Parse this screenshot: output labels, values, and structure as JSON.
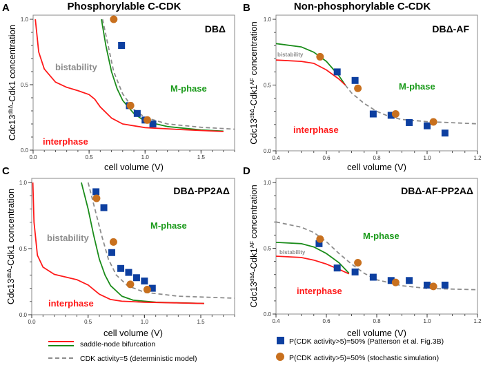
{
  "colors": {
    "saddle_red": "#ff1a1a",
    "saddle_green": "#1a8c1a",
    "deterministic": "#8c8c8c",
    "patterson": "#0d3fa0",
    "stochastic": "#c8701e",
    "region_gray": "#8c8c8c",
    "region_green": "#1a9a1a",
    "region_red": "#ff1a1a"
  },
  "legend": {
    "saddle_node": "saddle-node bifurcation",
    "deterministic": "CDK activity=5 (deterministic model)",
    "patterson": "P(CDK activity>5)=50% (Patterson et al. Fig.3B)",
    "stochastic": "P(CDK activity>5)=50% (stochastic simulation)"
  },
  "column_titles": {
    "left": "Phosphorylable C-CDK",
    "right": "Non-phosphorylable C-CDK"
  },
  "chart_data": [
    {
      "type": "line",
      "panel": "A",
      "mutant": "DBΔ",
      "xlabel": "cell volume (V)",
      "ylabel_main": "Cdc13",
      "ylabel_sup": "dbΔ",
      "ylabel_rest": "-Cdk1 concentration",
      "ylabel_sup2": "",
      "xlim": [
        0,
        1.8
      ],
      "ylim": [
        0,
        1.0
      ],
      "xticks": [
        "0.0",
        "0.5",
        "1.0",
        "1.5"
      ],
      "xtick_values": [
        0,
        0.5,
        1.0,
        1.5
      ],
      "yticks": [
        "0.0",
        "0.5",
        "1.0"
      ],
      "ytick_values": [
        0,
        0.5,
        1.0
      ],
      "regions": {
        "bistability": "bistability",
        "mphase": "M-phase",
        "interphase": "interphase"
      },
      "red": [
        [
          0.02,
          1.0
        ],
        [
          0.05,
          0.75
        ],
        [
          0.1,
          0.62
        ],
        [
          0.2,
          0.52
        ],
        [
          0.3,
          0.48
        ],
        [
          0.4,
          0.455
        ],
        [
          0.5,
          0.425
        ],
        [
          0.55,
          0.39
        ],
        [
          0.6,
          0.33
        ],
        [
          0.7,
          0.245
        ],
        [
          0.8,
          0.2
        ],
        [
          1.0,
          0.172
        ],
        [
          1.3,
          0.158
        ],
        [
          1.7,
          0.142
        ]
      ],
      "green": [
        [
          0.61,
          1.0
        ],
        [
          0.65,
          0.8
        ],
        [
          0.7,
          0.6
        ],
        [
          0.75,
          0.47
        ],
        [
          0.8,
          0.38
        ],
        [
          0.9,
          0.28
        ],
        [
          1.0,
          0.22
        ],
        [
          1.2,
          0.18
        ],
        [
          1.5,
          0.155
        ],
        [
          1.7,
          0.145
        ]
      ],
      "gray": [
        [
          0.62,
          1.0
        ],
        [
          0.67,
          0.8
        ],
        [
          0.72,
          0.6
        ],
        [
          0.8,
          0.43
        ],
        [
          0.9,
          0.31
        ],
        [
          1.0,
          0.25
        ],
        [
          1.2,
          0.2
        ],
        [
          1.5,
          0.175
        ],
        [
          1.8,
          0.16
        ]
      ],
      "squares": [
        [
          0.79,
          0.8
        ],
        [
          0.86,
          0.34
        ],
        [
          0.93,
          0.28
        ],
        [
          1.0,
          0.23
        ],
        [
          1.07,
          0.2
        ]
      ],
      "circles": [
        [
          0.72,
          1.0
        ],
        [
          0.87,
          0.34
        ],
        [
          1.02,
          0.23
        ]
      ]
    },
    {
      "type": "line",
      "panel": "B",
      "mutant": "DBΔ-AF",
      "xlabel": "cell volume (V)",
      "ylabel_main": "Cdc13",
      "ylabel_sup": "dbΔ",
      "ylabel_rest": "-Cdk1",
      "ylabel_sup2": "AF",
      "ylabel_end": " concentration",
      "xlim": [
        0.4,
        1.2
      ],
      "ylim": [
        0,
        1.0
      ],
      "xticks": [
        "0.4",
        "0.6",
        "0.8",
        "1.0",
        "1.2"
      ],
      "xtick_values": [
        0.4,
        0.6,
        0.8,
        1.0,
        1.2
      ],
      "yticks": [
        "0.0",
        "0.5",
        "1.0"
      ],
      "ytick_values": [
        0,
        0.5,
        1.0
      ],
      "regions": {
        "bistability": "bistability",
        "mphase": "M-phase",
        "interphase": "interphase"
      },
      "red": [
        [
          0.4,
          0.69
        ],
        [
          0.5,
          0.68
        ],
        [
          0.55,
          0.665
        ],
        [
          0.6,
          0.615
        ],
        [
          0.65,
          0.545
        ],
        [
          0.675,
          0.5
        ]
      ],
      "green": [
        [
          0.4,
          0.815
        ],
        [
          0.5,
          0.79
        ],
        [
          0.55,
          0.75
        ],
        [
          0.6,
          0.68
        ],
        [
          0.65,
          0.57
        ],
        [
          0.675,
          0.5
        ]
      ],
      "gray": [
        [
          0.675,
          0.5
        ],
        [
          0.7,
          0.44
        ],
        [
          0.75,
          0.36
        ],
        [
          0.8,
          0.3
        ],
        [
          0.85,
          0.26
        ],
        [
          0.9,
          0.238
        ],
        [
          1.0,
          0.222
        ],
        [
          1.2,
          0.205
        ]
      ],
      "squares": [
        [
          0.643,
          0.6
        ],
        [
          0.714,
          0.535
        ],
        [
          0.786,
          0.28
        ],
        [
          0.857,
          0.27
        ],
        [
          0.929,
          0.215
        ],
        [
          1.0,
          0.19
        ],
        [
          1.071,
          0.135
        ]
      ],
      "circles": [
        [
          0.575,
          0.715
        ],
        [
          0.725,
          0.475
        ],
        [
          0.875,
          0.28
        ],
        [
          1.025,
          0.22
        ]
      ]
    },
    {
      "type": "line",
      "panel": "C",
      "mutant": "DBΔ-PP2AΔ",
      "xlabel": "cell volume (V)",
      "ylabel_main": "Cdc13",
      "ylabel_sup": "dbΔ",
      "ylabel_rest": "-Cdk1 concentration",
      "ylabel_sup2": "",
      "xlim": [
        0,
        1.8
      ],
      "ylim": [
        0,
        1.0
      ],
      "xticks": [
        "0.0",
        "0.5",
        "1.0",
        "1.5"
      ],
      "xtick_values": [
        0,
        0.5,
        1.0,
        1.5
      ],
      "yticks": [
        "0.0",
        "0.5",
        "1.0"
      ],
      "ytick_values": [
        0,
        0.5,
        1.0
      ],
      "regions": {
        "bistability": "bistability",
        "mphase": "M-phase",
        "interphase": "interphase"
      },
      "red": [
        [
          0.01,
          1.0
        ],
        [
          0.02,
          0.7
        ],
        [
          0.05,
          0.45
        ],
        [
          0.1,
          0.36
        ],
        [
          0.2,
          0.305
        ],
        [
          0.3,
          0.285
        ],
        [
          0.4,
          0.265
        ],
        [
          0.5,
          0.225
        ],
        [
          0.6,
          0.155
        ],
        [
          0.7,
          0.115
        ],
        [
          0.8,
          0.102
        ],
        [
          1.0,
          0.095
        ],
        [
          1.53,
          0.085
        ]
      ],
      "green": [
        [
          0.44,
          1.0
        ],
        [
          0.5,
          0.8
        ],
        [
          0.55,
          0.6
        ],
        [
          0.6,
          0.42
        ],
        [
          0.65,
          0.3
        ],
        [
          0.7,
          0.22
        ],
        [
          0.8,
          0.14
        ],
        [
          0.9,
          0.11
        ],
        [
          1.1,
          0.095
        ],
        [
          1.53,
          0.085
        ]
      ],
      "gray": [
        [
          0.5,
          1.0
        ],
        [
          0.56,
          0.8
        ],
        [
          0.62,
          0.6
        ],
        [
          0.68,
          0.42
        ],
        [
          0.75,
          0.3
        ],
        [
          0.85,
          0.22
        ],
        [
          1.0,
          0.17
        ],
        [
          1.3,
          0.14
        ],
        [
          1.8,
          0.125
        ]
      ],
      "squares": [
        [
          0.57,
          0.93
        ],
        [
          0.64,
          0.81
        ],
        [
          0.71,
          0.47
        ],
        [
          0.79,
          0.35
        ],
        [
          0.86,
          0.32
        ],
        [
          0.93,
          0.28
        ],
        [
          1.0,
          0.255
        ],
        [
          1.07,
          0.2
        ]
      ],
      "circles": [
        [
          0.575,
          0.88
        ],
        [
          0.725,
          0.55
        ],
        [
          0.875,
          0.23
        ],
        [
          1.025,
          0.19
        ]
      ]
    },
    {
      "type": "line",
      "panel": "D",
      "mutant": "DBΔ-AF-PP2AΔ",
      "xlabel": "cell volume (V)",
      "ylabel_main": "Cdc13",
      "ylabel_sup": "dbΔ",
      "ylabel_rest": "-Cdk1",
      "ylabel_sup2": "AF",
      "ylabel_end": " concentration",
      "xlim": [
        0.4,
        1.2
      ],
      "ylim": [
        0,
        1.0
      ],
      "xticks": [
        "0.4",
        "0.6",
        "0.8",
        "1.0",
        "1.2"
      ],
      "xtick_values": [
        0.4,
        0.6,
        0.8,
        1.0,
        1.2
      ],
      "yticks": [
        "0.0",
        "0.5",
        "1.0"
      ],
      "ytick_values": [
        0,
        0.5,
        1.0
      ],
      "regions": {
        "bistability": "bistability",
        "mphase": "M-phase",
        "interphase": "interphase"
      },
      "red": [
        [
          0.4,
          0.44
        ],
        [
          0.5,
          0.43
        ],
        [
          0.55,
          0.41
        ],
        [
          0.6,
          0.38
        ],
        [
          0.65,
          0.34
        ],
        [
          0.69,
          0.305
        ]
      ],
      "green": [
        [
          0.4,
          0.545
        ],
        [
          0.5,
          0.535
        ],
        [
          0.55,
          0.51
        ],
        [
          0.6,
          0.46
        ],
        [
          0.65,
          0.39
        ],
        [
          0.69,
          0.31
        ]
      ],
      "gray": [
        [
          0.4,
          0.7
        ],
        [
          0.5,
          0.66
        ],
        [
          0.55,
          0.62
        ],
        [
          0.6,
          0.55
        ],
        [
          0.65,
          0.46
        ],
        [
          0.7,
          0.38
        ],
        [
          0.75,
          0.31
        ],
        [
          0.8,
          0.26
        ],
        [
          0.9,
          0.215
        ],
        [
          1.0,
          0.195
        ],
        [
          1.2,
          0.185
        ]
      ],
      "squares": [
        [
          0.571,
          0.535
        ],
        [
          0.643,
          0.35
        ],
        [
          0.714,
          0.32
        ],
        [
          0.786,
          0.28
        ],
        [
          0.857,
          0.255
        ],
        [
          0.929,
          0.255
        ],
        [
          1.0,
          0.22
        ],
        [
          1.071,
          0.22
        ]
      ],
      "circles": [
        [
          0.575,
          0.57
        ],
        [
          0.725,
          0.39
        ],
        [
          0.875,
          0.24
        ],
        [
          1.025,
          0.21
        ]
      ]
    }
  ]
}
